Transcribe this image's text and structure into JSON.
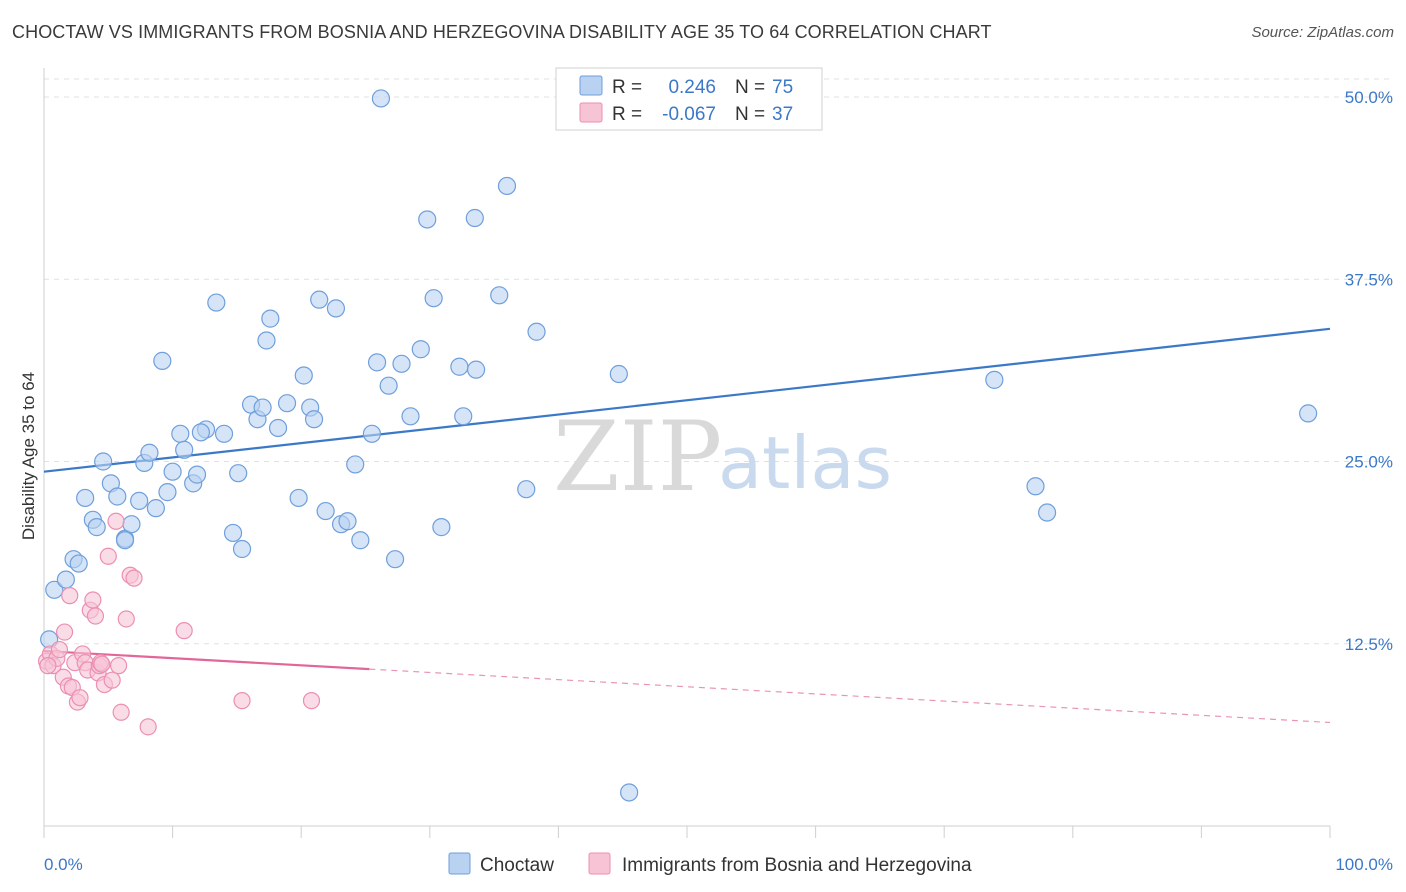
{
  "header": {
    "title": "CHOCTAW VS IMMIGRANTS FROM BOSNIA AND HERZEGOVINA DISABILITY AGE 35 TO 64 CORRELATION CHART",
    "source": "Source: ZipAtlas.com"
  },
  "legend": {
    "rows": [
      {
        "r_label": "R =",
        "r_value": "0.246",
        "n_label": "N =",
        "n_value": "75"
      },
      {
        "r_label": "R =",
        "r_value": "-0.067",
        "n_label": "N =",
        "n_value": "37"
      }
    ]
  },
  "watermark": {
    "zip": "ZIP",
    "atlas": "atlas"
  },
  "colors": {
    "blue": "#3b78c8",
    "blue_fill": "#b9d2f1",
    "blue_stroke": "#6f9fdc",
    "pink": "#e2669a",
    "pink_fill": "#f6c4d5",
    "pink_stroke": "#ec8fb2",
    "grid": "#e1e1e1"
  },
  "chart_data": {
    "type": "scatter",
    "title": "CHOCTAW VS IMMIGRANTS FROM BOSNIA AND HERZEGOVINA DISABILITY AGE 35 TO 64 CORRELATION CHART",
    "xlabel": "",
    "ylabel": "Disability Age 35 to 64",
    "xlim": [
      0,
      100
    ],
    "ylim": [
      0,
      52
    ],
    "x_tick_labels": [
      "0.0%",
      "100.0%"
    ],
    "y_ticks": [
      12.5,
      25.0,
      37.5,
      50.0
    ],
    "y_tick_labels": [
      "12.5%",
      "25.0%",
      "37.5%",
      "50.0%"
    ],
    "grid": true,
    "legend_position": "bottom",
    "series": [
      {
        "name": "Choctaw",
        "color": "#6f9fdc",
        "trend": {
          "x0": 0,
          "y0": 24.3,
          "x1": 100,
          "y1": 34.1,
          "solid_to": 100
        },
        "points": [
          [
            0.4,
            12.8
          ],
          [
            0.8,
            16.2
          ],
          [
            1.7,
            16.9
          ],
          [
            2.3,
            18.3
          ],
          [
            2.7,
            18.0
          ],
          [
            3.2,
            22.5
          ],
          [
            3.8,
            21.0
          ],
          [
            4.1,
            20.5
          ],
          [
            4.6,
            25.0
          ],
          [
            5.2,
            23.5
          ],
          [
            5.7,
            22.6
          ],
          [
            6.3,
            19.7
          ],
          [
            6.8,
            20.7
          ],
          [
            7.4,
            22.3
          ],
          [
            7.8,
            24.9
          ],
          [
            8.2,
            25.6
          ],
          [
            8.7,
            21.8
          ],
          [
            9.2,
            31.9
          ],
          [
            9.6,
            22.9
          ],
          [
            10.0,
            24.3
          ],
          [
            10.6,
            26.9
          ],
          [
            10.9,
            25.8
          ],
          [
            11.6,
            23.5
          ],
          [
            11.9,
            24.1
          ],
          [
            12.6,
            27.2
          ],
          [
            13.4,
            35.9
          ],
          [
            14.0,
            26.9
          ],
          [
            14.7,
            20.1
          ],
          [
            15.1,
            24.2
          ],
          [
            15.4,
            19.0
          ],
          [
            16.1,
            28.9
          ],
          [
            16.6,
            27.9
          ],
          [
            17.0,
            28.7
          ],
          [
            17.3,
            33.3
          ],
          [
            17.6,
            34.8
          ],
          [
            18.2,
            27.3
          ],
          [
            18.9,
            29.0
          ],
          [
            19.8,
            22.5
          ],
          [
            20.2,
            30.9
          ],
          [
            20.7,
            28.7
          ],
          [
            21.0,
            27.9
          ],
          [
            21.4,
            36.1
          ],
          [
            21.9,
            21.6
          ],
          [
            22.7,
            35.5
          ],
          [
            23.1,
            20.7
          ],
          [
            23.6,
            20.9
          ],
          [
            24.2,
            24.8
          ],
          [
            24.6,
            19.6
          ],
          [
            25.5,
            26.9
          ],
          [
            25.9,
            31.8
          ],
          [
            26.8,
            30.2
          ],
          [
            27.3,
            18.3
          ],
          [
            27.8,
            31.7
          ],
          [
            28.5,
            28.1
          ],
          [
            29.3,
            32.7
          ],
          [
            29.8,
            41.6
          ],
          [
            30.3,
            36.2
          ],
          [
            30.9,
            20.5
          ],
          [
            32.3,
            31.5
          ],
          [
            32.6,
            28.1
          ],
          [
            33.5,
            41.7
          ],
          [
            33.6,
            31.3
          ],
          [
            35.4,
            36.4
          ],
          [
            36.0,
            43.9
          ],
          [
            37.5,
            23.1
          ],
          [
            38.3,
            33.9
          ],
          [
            44.7,
            31.0
          ],
          [
            45.5,
            2.3
          ],
          [
            73.9,
            30.6
          ],
          [
            77.1,
            23.3
          ],
          [
            78.0,
            21.5
          ],
          [
            98.3,
            28.3
          ],
          [
            26.2,
            49.9
          ],
          [
            6.3,
            19.6
          ],
          [
            12.2,
            27.0
          ]
        ]
      },
      {
        "name": "Immigrants from Bosnia and Herzegovina",
        "color": "#ec8fb2",
        "trend": {
          "x0": 0,
          "y0": 12.0,
          "x1": 100,
          "y1": 7.1,
          "solid_to": 25.3
        },
        "points": [
          [
            0.2,
            11.3
          ],
          [
            0.5,
            11.8
          ],
          [
            0.7,
            11.0
          ],
          [
            1.0,
            11.5
          ],
          [
            1.2,
            12.1
          ],
          [
            1.5,
            10.2
          ],
          [
            1.6,
            13.3
          ],
          [
            1.9,
            9.6
          ],
          [
            2.0,
            15.8
          ],
          [
            2.2,
            9.5
          ],
          [
            2.4,
            11.2
          ],
          [
            2.6,
            8.5
          ],
          [
            2.8,
            8.8
          ],
          [
            3.0,
            11.8
          ],
          [
            3.2,
            11.2
          ],
          [
            3.4,
            10.7
          ],
          [
            3.6,
            14.8
          ],
          [
            3.8,
            15.5
          ],
          [
            4.0,
            14.4
          ],
          [
            4.2,
            10.5
          ],
          [
            4.3,
            11.0
          ],
          [
            4.4,
            11.2
          ],
          [
            4.5,
            11.1
          ],
          [
            4.7,
            9.7
          ],
          [
            5.0,
            18.5
          ],
          [
            5.3,
            10.0
          ],
          [
            5.6,
            20.9
          ],
          [
            5.8,
            11.0
          ],
          [
            6.0,
            7.8
          ],
          [
            6.4,
            14.2
          ],
          [
            6.7,
            17.2
          ],
          [
            7.0,
            17.0
          ],
          [
            8.1,
            6.8
          ],
          [
            10.9,
            13.4
          ],
          [
            15.4,
            8.6
          ],
          [
            20.8,
            8.6
          ],
          [
            0.3,
            11.0
          ]
        ]
      }
    ]
  },
  "bottom_legend": {
    "items": [
      "Choctaw",
      "Immigrants from Bosnia and Herzegovina"
    ]
  }
}
